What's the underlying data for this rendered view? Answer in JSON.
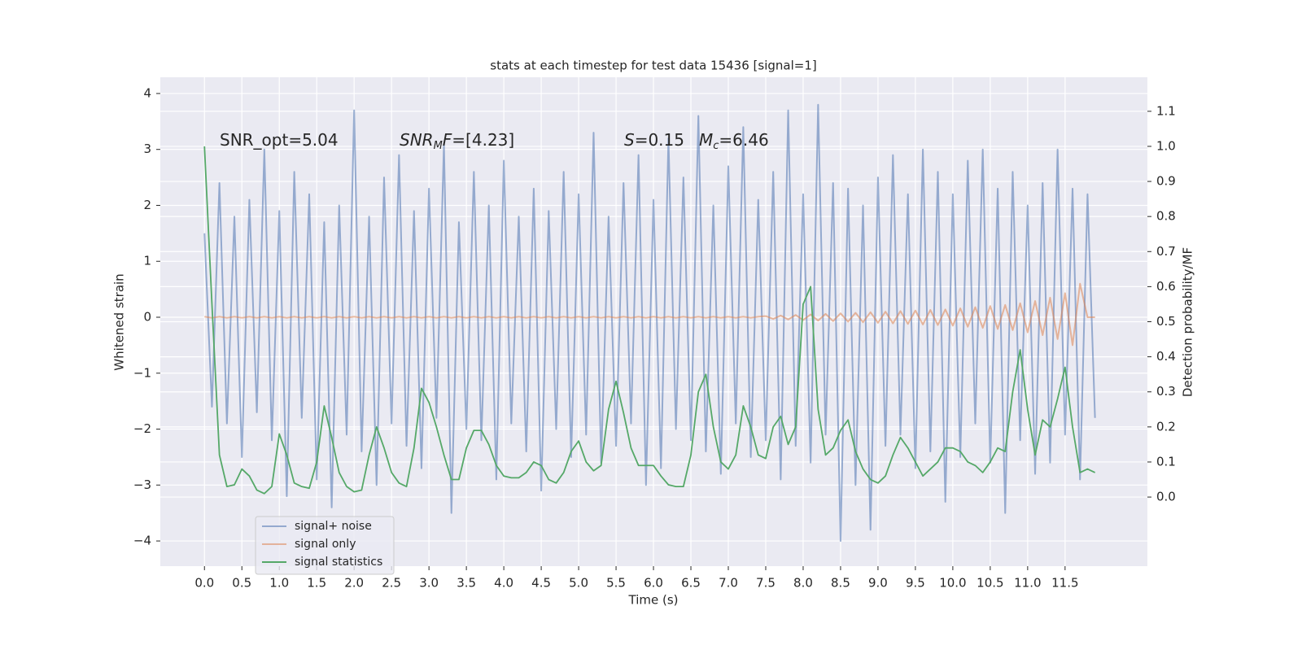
{
  "chart_data": {
    "type": "line",
    "title": "stats at each timestep for test data 15436 [signal=1]",
    "xlabel": "Time (s)",
    "ylabel": "Whitened strain",
    "y2label": "Detection probability/MF",
    "grid": true,
    "legend": "lower left",
    "xlim": [
      -0.59,
      12.6
    ],
    "ylim": [
      -4.45,
      4.29
    ],
    "y2lim": [
      -0.197,
      1.197
    ],
    "xticks": [
      {
        "value": 0,
        "label": "0.0"
      },
      {
        "value": 0.5,
        "label": "0.5"
      },
      {
        "value": 1,
        "label": "1.0"
      },
      {
        "value": 1.5,
        "label": "1.5"
      },
      {
        "value": 2,
        "label": "2.0"
      },
      {
        "value": 2.5,
        "label": "2.5"
      },
      {
        "value": 3,
        "label": "3.0"
      },
      {
        "value": 3.5,
        "label": "3.5"
      },
      {
        "value": 4,
        "label": "4.0"
      },
      {
        "value": 4.5,
        "label": "4.5"
      },
      {
        "value": 5,
        "label": "5.0"
      },
      {
        "value": 5.5,
        "label": "5.5"
      },
      {
        "value": 6,
        "label": "6.0"
      },
      {
        "value": 6.5,
        "label": "6.5"
      },
      {
        "value": 7,
        "label": "7.0"
      },
      {
        "value": 7.5,
        "label": "7.5"
      },
      {
        "value": 8,
        "label": "8.0"
      },
      {
        "value": 8.5,
        "label": "8.5"
      },
      {
        "value": 9,
        "label": "9.0"
      },
      {
        "value": 9.5,
        "label": "9.5"
      },
      {
        "value": 10,
        "label": "10.0"
      },
      {
        "value": 10.5,
        "label": "10.5"
      },
      {
        "value": 11,
        "label": "11.0"
      },
      {
        "value": 11.5,
        "label": "11.5"
      }
    ],
    "yticks": [
      {
        "value": -4,
        "label": "−4"
      },
      {
        "value": -3,
        "label": "−3"
      },
      {
        "value": -2,
        "label": "−2"
      },
      {
        "value": -1,
        "label": "−1"
      },
      0,
      1,
      2,
      3,
      4
    ],
    "y2ticks": [
      {
        "value": 0,
        "label": "0.0"
      },
      {
        "value": 0.1,
        "label": "0.1"
      },
      {
        "value": 0.2,
        "label": "0.2"
      },
      {
        "value": 0.3,
        "label": "0.3"
      },
      {
        "value": 0.4,
        "label": "0.4"
      },
      {
        "value": 0.5,
        "label": "0.5"
      },
      {
        "value": 0.6,
        "label": "0.6"
      },
      {
        "value": 0.7,
        "label": "0.7"
      },
      {
        "value": 0.8,
        "label": "0.8"
      },
      {
        "value": 0.9,
        "label": "0.9"
      },
      {
        "value": 1,
        "label": "1.0"
      },
      {
        "value": 1.1,
        "label": "1.1"
      }
    ],
    "annotations": [
      [
        {
          "text": "SNR_opt=5.04"
        }
      ],
      [
        {
          "text": "SNR",
          "italic": true
        },
        {
          "text": "M",
          "italic": true,
          "sub": true
        },
        {
          "text": "F",
          "italic": true
        },
        {
          "text": "=[4.23]"
        }
      ],
      [
        {
          "text": "S",
          "italic": true
        },
        {
          "text": "=0.15"
        }
      ],
      [
        {
          "text": "M",
          "italic": true
        },
        {
          "text": "c",
          "italic": true,
          "sub": true
        },
        {
          "text": "=6.46"
        }
      ]
    ],
    "x": [
      0.0,
      0.1,
      0.2,
      0.3,
      0.4,
      0.5,
      0.6,
      0.7,
      0.8,
      0.9,
      1.0,
      1.1,
      1.2,
      1.3,
      1.4,
      1.5,
      1.6,
      1.7,
      1.8,
      1.9,
      2.0,
      2.1,
      2.2,
      2.3,
      2.4,
      2.5,
      2.6,
      2.7,
      2.8,
      2.9,
      3.0,
      3.1,
      3.2,
      3.3,
      3.4,
      3.5,
      3.6,
      3.7,
      3.8,
      3.9,
      4.0,
      4.1,
      4.2,
      4.3,
      4.4,
      4.5,
      4.6,
      4.7,
      4.8,
      4.9,
      5.0,
      5.1,
      5.2,
      5.3,
      5.4,
      5.5,
      5.6,
      5.7,
      5.8,
      5.9,
      6.0,
      6.1,
      6.2,
      6.3,
      6.4,
      6.5,
      6.6,
      6.7,
      6.8,
      6.9,
      7.0,
      7.1,
      7.2,
      7.3,
      7.4,
      7.5,
      7.6,
      7.7,
      7.8,
      7.9,
      8.0,
      8.1,
      8.2,
      8.3,
      8.4,
      8.5,
      8.6,
      8.7,
      8.8,
      8.9,
      9.0,
      9.1,
      9.2,
      9.3,
      9.4,
      9.5,
      9.6,
      9.7,
      9.8,
      9.9,
      10.0,
      10.1,
      10.2,
      10.3,
      10.4,
      10.5,
      10.6,
      10.7,
      10.8,
      10.9,
      11.0,
      11.1,
      11.2,
      11.3,
      11.4,
      11.5,
      11.6,
      11.7,
      11.8,
      11.9
    ],
    "series": [
      {
        "name": "signal+ noise",
        "color": "#4c72b0",
        "values": [
          1.5,
          -1.6,
          2.4,
          -1.9,
          1.8,
          -2.5,
          2.1,
          -1.7,
          3.0,
          -2.2,
          1.9,
          -3.2,
          2.6,
          -1.8,
          2.2,
          -2.9,
          1.7,
          -3.4,
          2.0,
          -2.1,
          3.7,
          -2.4,
          1.8,
          -3.0,
          2.5,
          -1.9,
          2.9,
          -2.3,
          1.9,
          -2.7,
          2.3,
          -1.8,
          3.1,
          -3.5,
          1.7,
          -2.0,
          2.6,
          -2.2,
          2.0,
          -2.9,
          2.8,
          -1.9,
          1.8,
          -2.4,
          2.3,
          -3.1,
          1.9,
          -2.0,
          2.6,
          -2.5,
          2.2,
          -2.1,
          3.3,
          -2.6,
          1.8,
          -2.3,
          2.4,
          -1.9,
          2.9,
          -3.0,
          2.1,
          -2.7,
          3.2,
          -2.0,
          2.5,
          -2.2,
          3.6,
          -2.4,
          2.0,
          -2.8,
          2.7,
          -1.9,
          3.4,
          -2.5,
          2.1,
          -2.2,
          2.6,
          -2.9,
          3.7,
          -2.3,
          2.2,
          -2.6,
          3.8,
          -2.1,
          2.4,
          -4.0,
          2.3,
          -3.0,
          2.0,
          -3.8,
          2.5,
          -2.3,
          2.9,
          -2.1,
          2.2,
          -2.7,
          3.0,
          -2.4,
          2.6,
          -3.3,
          2.2,
          -2.5,
          2.8,
          -1.9,
          3.0,
          -2.6,
          2.3,
          -3.5,
          2.6,
          -2.2,
          2.0,
          -2.8,
          2.4,
          -2.6,
          3.0,
          -2.1,
          2.3,
          -2.9,
          2.2,
          -1.8
        ]
      },
      {
        "name": "signal only",
        "color": "#dd8452",
        "values": [
          0.01,
          -0.01,
          0.01,
          -0.01,
          0.01,
          -0.01,
          0.01,
          -0.01,
          0.01,
          -0.01,
          0.01,
          -0.01,
          0.01,
          -0.01,
          0.01,
          -0.01,
          0.01,
          -0.01,
          0.01,
          -0.01,
          0.01,
          -0.01,
          0.01,
          -0.01,
          0.01,
          -0.01,
          0.01,
          -0.01,
          0.01,
          -0.01,
          0.01,
          -0.01,
          0.01,
          -0.01,
          0.01,
          -0.01,
          0.01,
          -0.01,
          0.01,
          -0.01,
          0.01,
          -0.01,
          0.01,
          -0.01,
          0.01,
          -0.01,
          0.01,
          -0.01,
          0.01,
          -0.01,
          0.01,
          -0.01,
          0.01,
          -0.01,
          0.01,
          -0.01,
          0.01,
          -0.01,
          0.01,
          -0.01,
          0.01,
          -0.01,
          0.01,
          -0.01,
          0.01,
          -0.01,
          0.01,
          -0.01,
          0.01,
          -0.01,
          0.01,
          -0.01,
          0.01,
          -0.01,
          0.01,
          0.02,
          -0.03,
          0.03,
          -0.04,
          0.04,
          -0.05,
          0.05,
          -0.06,
          0.06,
          -0.07,
          0.07,
          -0.08,
          0.08,
          -0.09,
          0.09,
          -0.1,
          0.1,
          -0.11,
          0.11,
          -0.12,
          0.12,
          -0.13,
          0.13,
          -0.14,
          0.14,
          -0.15,
          0.16,
          -0.17,
          0.18,
          -0.19,
          0.2,
          -0.21,
          0.22,
          -0.23,
          0.25,
          -0.27,
          0.29,
          -0.32,
          0.35,
          -0.39,
          0.43,
          -0.5,
          0.6,
          0.0,
          0.0
        ]
      },
      {
        "name": "signal statistics",
        "color": "#55a868",
        "axis": "y2",
        "values": [
          1.0,
          0.55,
          0.12,
          0.03,
          0.035,
          0.08,
          0.06,
          0.02,
          0.01,
          0.03,
          0.18,
          0.12,
          0.04,
          0.03,
          0.025,
          0.1,
          0.26,
          0.17,
          0.07,
          0.03,
          0.015,
          0.02,
          0.12,
          0.2,
          0.14,
          0.07,
          0.04,
          0.03,
          0.14,
          0.31,
          0.27,
          0.2,
          0.12,
          0.05,
          0.05,
          0.14,
          0.19,
          0.19,
          0.15,
          0.09,
          0.06,
          0.055,
          0.055,
          0.07,
          0.1,
          0.09,
          0.05,
          0.04,
          0.07,
          0.13,
          0.16,
          0.1,
          0.075,
          0.09,
          0.25,
          0.33,
          0.24,
          0.14,
          0.09,
          0.09,
          0.09,
          0.06,
          0.035,
          0.03,
          0.03,
          0.12,
          0.3,
          0.35,
          0.2,
          0.1,
          0.08,
          0.12,
          0.26,
          0.2,
          0.12,
          0.11,
          0.2,
          0.23,
          0.15,
          0.2,
          0.55,
          0.6,
          0.25,
          0.12,
          0.14,
          0.19,
          0.22,
          0.13,
          0.08,
          0.05,
          0.04,
          0.06,
          0.12,
          0.17,
          0.14,
          0.1,
          0.06,
          0.08,
          0.1,
          0.14,
          0.14,
          0.13,
          0.1,
          0.09,
          0.07,
          0.1,
          0.14,
          0.13,
          0.3,
          0.42,
          0.25,
          0.12,
          0.22,
          0.2,
          0.28,
          0.37,
          0.2,
          0.07,
          0.08,
          0.07
        ]
      }
    ]
  }
}
